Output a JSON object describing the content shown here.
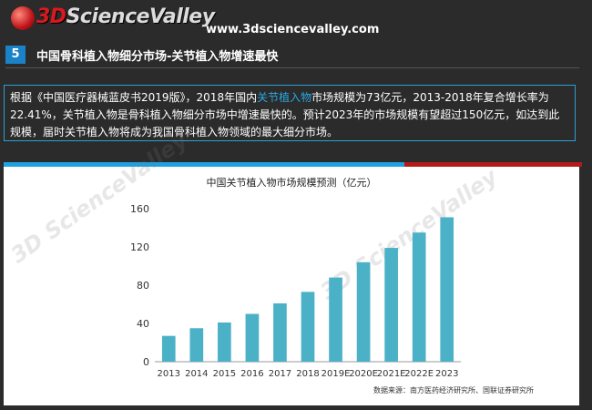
{
  "header": {
    "logo_prefix": "3D",
    "logo_text": "ScienceValley",
    "site_url": "www.3dsciencevalley.com"
  },
  "section": {
    "number": "5",
    "title": "中国骨科植入物细分市场-关节植入物增速最快"
  },
  "summary": {
    "part1": "根据《中国医疗器械蓝皮书2019版》，2018年国内",
    "highlight": "关节植入物",
    "part2": "市场规模为73亿元，2013-2018年复合增长率为22.41%，关节植入物是骨科植入物细分市场中增速最快的。预计2023年的市场规模有望超过150亿元，如达到此规模，届时关节植入物将成为我国骨科植入物领域的最大细分市场。"
  },
  "colors": {
    "bar": "#4bb1c6",
    "accent_blue": "#1da1e1",
    "accent_red": "#b31b1b"
  },
  "chart_data": {
    "type": "bar",
    "title": "中国关节植入物市场规模预测（亿元）",
    "categories": [
      "2013",
      "2014",
      "2015",
      "2016",
      "2017",
      "2018",
      "2019E",
      "2020E",
      "2021E",
      "2022E",
      "2023"
    ],
    "values": [
      27,
      35,
      41,
      50,
      61,
      73,
      88,
      104,
      119,
      135,
      151
    ],
    "ylim": [
      0,
      160
    ],
    "yticks": [
      0,
      40,
      80,
      120,
      160
    ],
    "grid": false,
    "source": "数据来源：南方医药经济研究所、国联证券研究所"
  }
}
